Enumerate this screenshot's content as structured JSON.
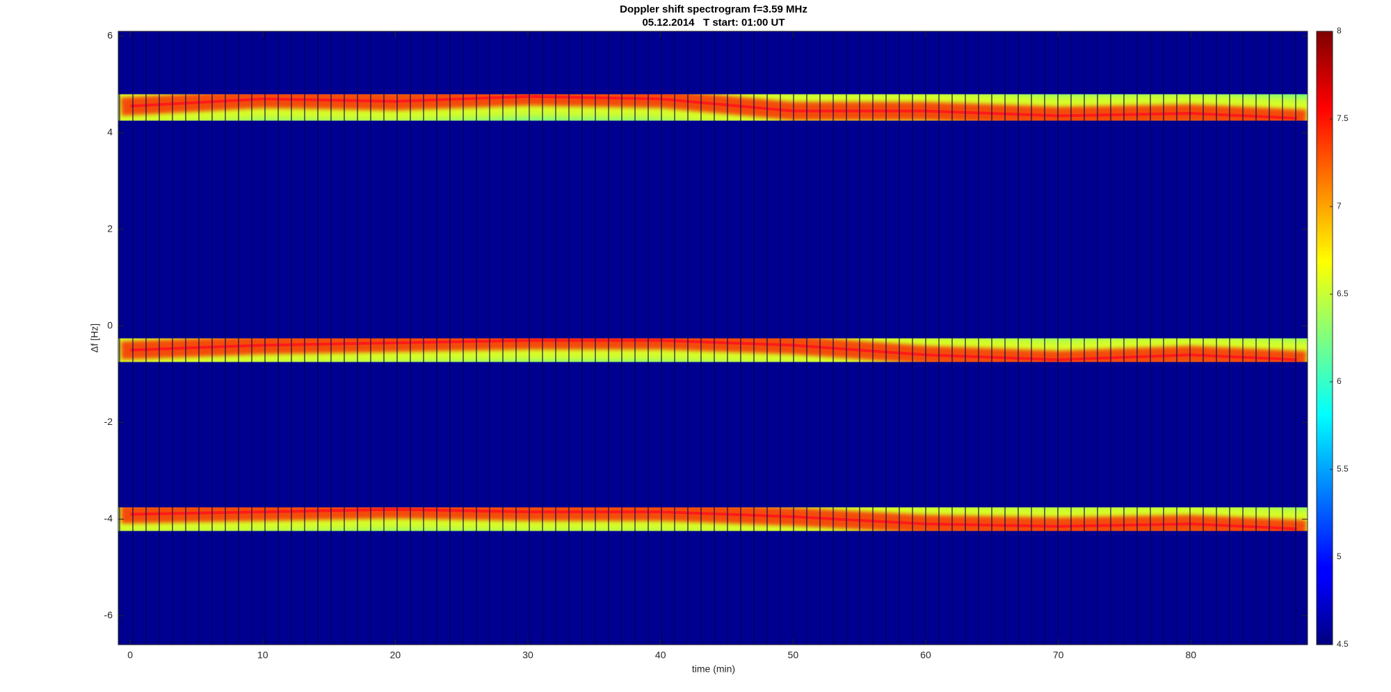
{
  "chart_data": {
    "type": "spectrogram",
    "title": "Doppler shift spectrogram f=3.59 MHz",
    "subtitle": "05.12.2014   T start: 01:00 UT",
    "x_label": "time (min)",
    "y_label": "Δf [Hz]",
    "x": [
      0,
      10,
      20,
      30,
      40,
      50,
      60,
      70,
      80,
      88
    ],
    "series": [
      {
        "color": "#ff1a1a",
        "values": [
          4.55,
          4.7,
          4.65,
          4.75,
          4.7,
          4.45,
          4.45,
          4.35,
          4.4,
          4.3
        ]
      },
      {
        "color": "#ff1a1a",
        "values": [
          -0.5,
          -0.4,
          -0.35,
          -0.3,
          -0.3,
          -0.4,
          -0.6,
          -0.7,
          -0.6,
          -0.7
        ]
      },
      {
        "color": "#ff1a1a",
        "values": [
          -3.9,
          -3.85,
          -3.8,
          -3.85,
          -3.85,
          -3.95,
          -4.1,
          -4.15,
          -4.1,
          -4.2
        ]
      }
    ],
    "xlim": [
      -0.9,
      88.8
    ],
    "xticks": [
      0,
      10,
      20,
      30,
      40,
      50,
      60,
      70,
      80
    ],
    "ylim": [
      -6.6,
      6.1
    ],
    "yticks": [
      -6,
      -4,
      -2,
      0,
      2,
      4,
      6
    ],
    "colormap": "jet",
    "clim": [
      4.5,
      8
    ],
    "cticks": [
      4.5,
      5,
      5.5,
      6,
      6.5,
      7,
      7.5,
      8
    ]
  }
}
